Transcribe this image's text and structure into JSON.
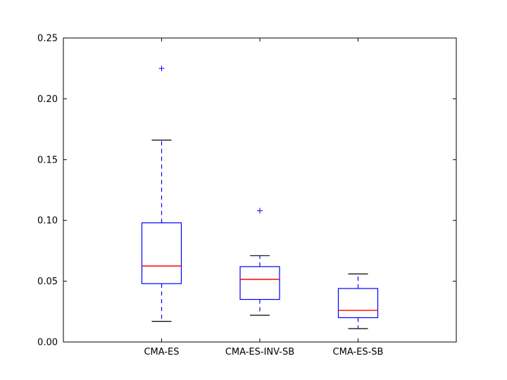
{
  "chart_data": {
    "type": "box",
    "title": "",
    "xlabel": "",
    "ylabel": "",
    "ylim": [
      0,
      0.25
    ],
    "yticks": [
      0.0,
      0.05,
      0.1,
      0.15,
      0.2,
      0.25
    ],
    "ytick_labels": [
      "0.00",
      "0.05",
      "0.10",
      "0.15",
      "0.20",
      "0.25"
    ],
    "grid": false,
    "categories": [
      "CMA-ES",
      "CMA-ES-INV-SB",
      "CMA-ES-SB"
    ],
    "boxes": [
      {
        "label": "CMA-ES",
        "whisker_low": 0.017,
        "q1": 0.048,
        "median": 0.0625,
        "q3": 0.098,
        "whisker_high": 0.166,
        "outliers": [
          0.225
        ]
      },
      {
        "label": "CMA-ES-INV-SB",
        "whisker_low": 0.022,
        "q1": 0.035,
        "median": 0.0515,
        "q3": 0.062,
        "whisker_high": 0.071,
        "outliers": [
          0.108
        ]
      },
      {
        "label": "CMA-ES-SB",
        "whisker_low": 0.011,
        "q1": 0.02,
        "median": 0.026,
        "q3": 0.044,
        "whisker_high": 0.056,
        "outliers": []
      }
    ],
    "colors": {
      "box": "#0000ff",
      "median": "#ff0000",
      "whisker": "#0000ff",
      "cap": "#000000",
      "outlier": "#0000ff"
    }
  }
}
